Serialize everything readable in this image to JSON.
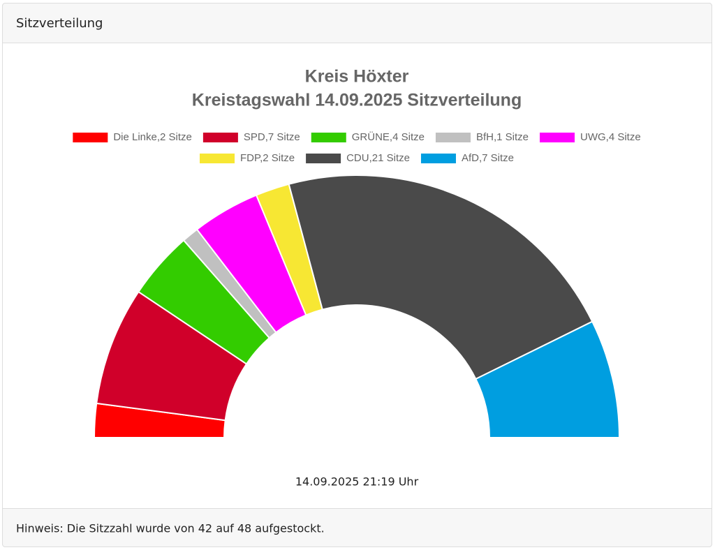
{
  "header": {
    "title": "Sitzverteilung"
  },
  "chart_data": {
    "type": "pie",
    "title": [
      "Kreis Höxter",
      "Kreistagswahl 14.09.2025 Sitzverteilung"
    ],
    "categories": [
      "Die Linke,2 Sitze",
      "SPD,7 Sitze",
      "GRÜNE,4 Sitze",
      "BfH,1 Sitze",
      "UWG,4 Sitze",
      "FDP,2 Sitze",
      "CDU,21 Sitze",
      "AfD,7 Sitze"
    ],
    "values": [
      2,
      7,
      4,
      1,
      4,
      2,
      21,
      7
    ],
    "colors": [
      "#ff0000",
      "#d0002a",
      "#33cc00",
      "#c0c0c0",
      "#ff00ff",
      "#f7e733",
      "#4a4a4a",
      "#009ee0"
    ],
    "legend": "top",
    "annotation": "14.09.2025 21:19 Uhr"
  },
  "footer": {
    "text": "Hinweis: Die Sitzzahl wurde von 42 auf 48 aufgestockt."
  }
}
